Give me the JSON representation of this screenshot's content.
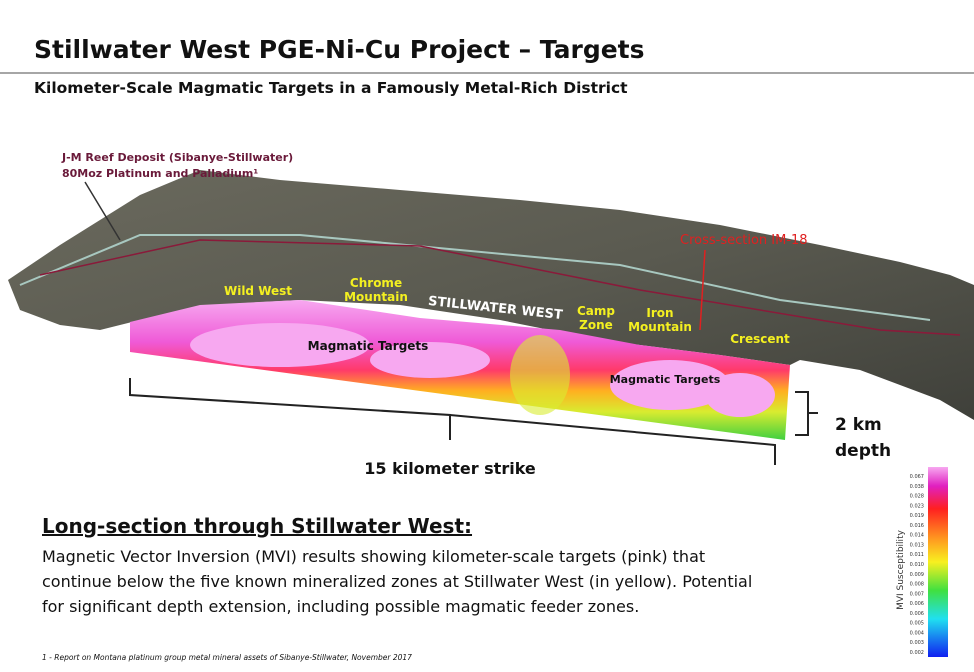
{
  "header": {
    "title": "Stillwater West PGE-Ni-Cu Project – Targets",
    "subtitle": "Kilometer-Scale Magmatic Targets in a Famously Metal-Rich District"
  },
  "figure": {
    "deposit_callout": [
      "J-M Reef Deposit (Sibanye-Stillwater)",
      "80Moz Platinum and Palladium¹"
    ],
    "cross_section_callout": "Cross-section IM-18",
    "zone_labels": [
      [
        "Wild West"
      ],
      [
        "Chrome",
        "Mountain"
      ],
      [
        "Camp",
        "Zone"
      ],
      [
        "Iron",
        "Mountain"
      ],
      [
        "Crescent"
      ]
    ],
    "region_label": "STILLWATER WEST",
    "target_labels": [
      "Magmatic Targets",
      "Magmatic Targets"
    ],
    "strike_label": "15 kilometer strike",
    "depth_label": [
      "2 km",
      "depth"
    ]
  },
  "colorbar": {
    "title": "MVI Susceptibility",
    "ticks": [
      "0.067",
      "0.038",
      "0.028",
      "0.023",
      "0.019",
      "0.016",
      "0.014",
      "0.013",
      "0.011",
      "0.010",
      "0.009",
      "0.008",
      "0.007",
      "0.006",
      "0.006",
      "0.005",
      "0.004",
      "0.003",
      "0.002"
    ]
  },
  "body": {
    "heading": "Long-section through Stillwater West:",
    "paragraph_lines": [
      "Magnetic Vector Inversion (MVI) results showing kilometer-scale targets (pink) that",
      "continue below the five known mineralized zones at Stillwater West (in yellow). Potential",
      "for significant depth extension, including possible magmatic feeder zones."
    ]
  },
  "footnote": "1 - Report on Montana platinum group metal mineral assets of Sibanye-Stillwater, November 2017"
}
